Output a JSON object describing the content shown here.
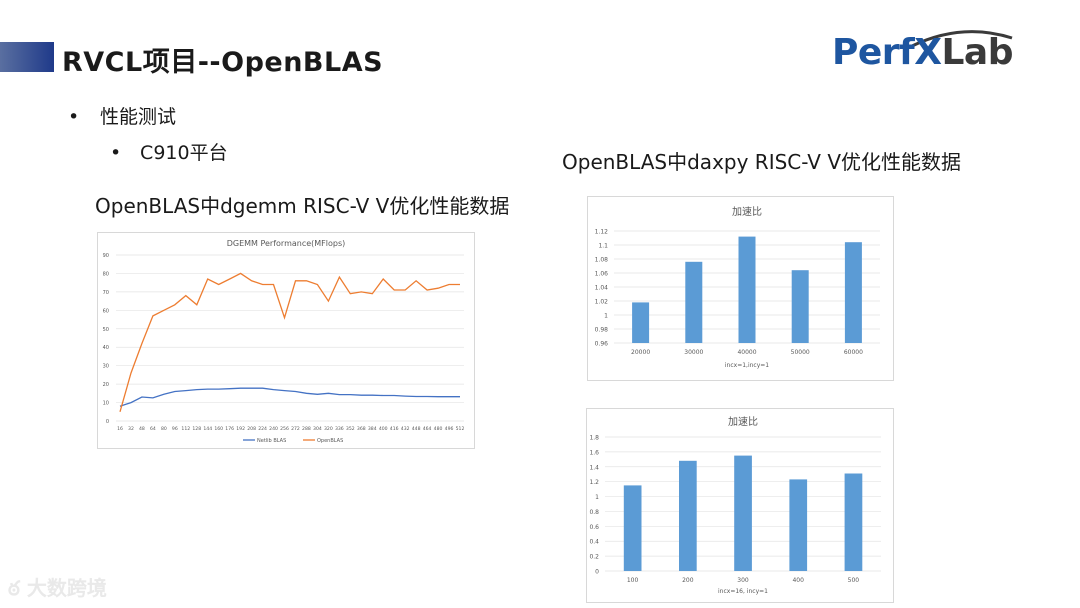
{
  "slide": {
    "title": "RVCL项目--OpenBLAS",
    "bullet1": "性能测试",
    "bullet2": "C910平台",
    "heading_left": "OpenBLAS中dgemm RISC-V V优化性能数据",
    "heading_right": "OpenBLAS中daxpy RISC-V V优化性能数据",
    "watermark": "大数跨境"
  },
  "logo": {
    "part1": "Perf",
    "part2": "X",
    "part3": "Lab",
    "accent": "#1e56a0",
    "dark": "#3a3a3a"
  },
  "colors": {
    "series_blue": "#4472c4",
    "series_orange": "#ed7d31",
    "bar": "#5b9bd5"
  },
  "chart_data": [
    {
      "type": "line",
      "title": "DGEMM Performance(MFlops)",
      "x": [
        "16",
        "32",
        "48",
        "64",
        "80",
        "96",
        "112",
        "128",
        "144",
        "160",
        "176",
        "192",
        "208",
        "224",
        "240",
        "256",
        "272",
        "288",
        "304",
        "320",
        "336",
        "352",
        "368",
        "384",
        "400",
        "416",
        "432",
        "448",
        "464",
        "480",
        "496",
        "512"
      ],
      "ylim": [
        0,
        90
      ],
      "yticks": [
        0,
        10,
        20,
        30,
        40,
        50,
        60,
        70,
        80,
        90
      ],
      "series": [
        {
          "name": "Netlib BLAS",
          "color": "#4472c4",
          "values": [
            8,
            10,
            13,
            12.5,
            14.5,
            16,
            16.5,
            17,
            17.3,
            17.3,
            17.5,
            17.8,
            17.8,
            17.8,
            17,
            16.5,
            16,
            15,
            14.5,
            15,
            14.3,
            14.3,
            14,
            14,
            13.8,
            13.8,
            13.5,
            13.3,
            13.3,
            13.2,
            13.2,
            13.2
          ]
        },
        {
          "name": "OpenBLAS",
          "color": "#ed7d31",
          "values": [
            5,
            26,
            42,
            57,
            60,
            63,
            68,
            63,
            77,
            74,
            77,
            80,
            76,
            74,
            74,
            56,
            76,
            76,
            74,
            65,
            78,
            69,
            70,
            69,
            77,
            71,
            71,
            76,
            71,
            72,
            74,
            74
          ]
        }
      ],
      "grid": true,
      "legend": "bottom"
    },
    {
      "type": "bar",
      "title": "加速比",
      "categories": [
        "20000",
        "30000",
        "40000",
        "50000",
        "60000"
      ],
      "values": [
        1.018,
        1.076,
        1.112,
        1.064,
        1.104
      ],
      "ylim": [
        0.96,
        1.12
      ],
      "yticks": [
        "0.96",
        "0.98",
        "1",
        "1.02",
        "1.04",
        "1.06",
        "1.08",
        "1.1",
        "1.12"
      ],
      "xlabel": "incx=1,incy=1",
      "grid": true
    },
    {
      "type": "bar",
      "title": "加速比",
      "categories": [
        "100",
        "200",
        "300",
        "400",
        "500"
      ],
      "values": [
        1.15,
        1.48,
        1.55,
        1.23,
        1.31
      ],
      "ylim": [
        0,
        1.8
      ],
      "yticks": [
        "0",
        "0.2",
        "0.4",
        "0.6",
        "0.8",
        "1",
        "1.2",
        "1.4",
        "1.6",
        "1.8"
      ],
      "xlabel": "incx=16, incy=1",
      "grid": true
    }
  ]
}
